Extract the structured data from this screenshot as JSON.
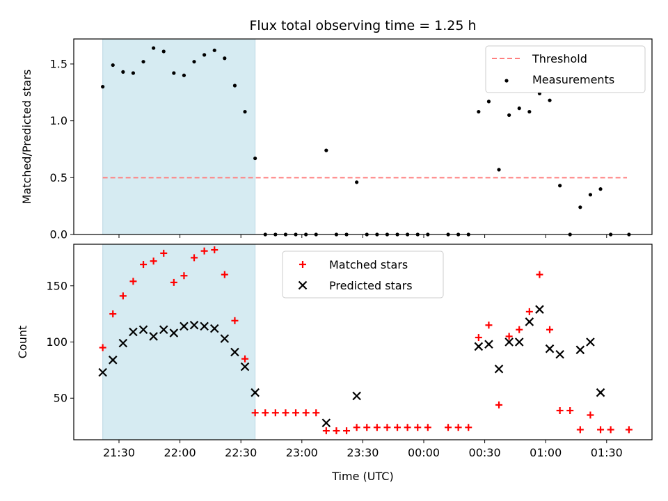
{
  "title": "Flux total observing time = 1.25 h",
  "colors": {
    "threshold": "#ff7f7f",
    "measurement": "#000000",
    "matched": "#ff0000",
    "predicted": "#000000",
    "span": "#add8e6"
  },
  "chart_data": [
    {
      "type": "scatter",
      "ylabel": "Matched/Predicted stars",
      "xlabel": "",
      "ylim": [
        0,
        1.72
      ],
      "yticks": [
        0.0,
        0.5,
        1.0,
        1.5
      ],
      "ytick_labels": [
        "0.0",
        "0.5",
        "1.0",
        "1.5"
      ],
      "highlight_span": [
        "21:22",
        "22:37"
      ],
      "legend_position": "upper right",
      "threshold": {
        "name": "Threshold",
        "y": 0.5,
        "x_range": [
          "21:22",
          "01:40"
        ]
      },
      "series": [
        {
          "name": "Measurements",
          "x": [
            "21:22",
            "21:27",
            "21:32",
            "21:37",
            "21:42",
            "21:47",
            "21:52",
            "21:57",
            "22:02",
            "22:07",
            "22:12",
            "22:17",
            "22:22",
            "22:27",
            "22:32",
            "22:37",
            "22:42",
            "22:47",
            "22:52",
            "22:57",
            "23:02",
            "23:07",
            "23:12",
            "23:17",
            "23:22",
            "23:27",
            "23:32",
            "23:37",
            "23:42",
            "23:47",
            "23:52",
            "23:57",
            "00:02",
            "00:12",
            "00:17",
            "00:22",
            "00:27",
            "00:32",
            "00:37",
            "00:42",
            "00:47",
            "00:52",
            "00:57",
            "01:02",
            "01:07",
            "01:12",
            "01:17",
            "01:22",
            "01:27",
            "01:32",
            "01:41"
          ],
          "y": [
            1.3,
            1.49,
            1.43,
            1.42,
            1.52,
            1.64,
            1.61,
            1.42,
            1.4,
            1.52,
            1.58,
            1.62,
            1.55,
            1.31,
            1.08,
            0.67,
            0.0,
            0.0,
            0.0,
            0.0,
            0.0,
            0.0,
            0.74,
            0.0,
            0.0,
            0.46,
            0.0,
            0.0,
            0.0,
            0.0,
            0.0,
            0.0,
            0.0,
            0.0,
            0.0,
            0.0,
            1.08,
            1.17,
            0.57,
            1.05,
            1.11,
            1.08,
            1.24,
            1.18,
            0.43,
            0.0,
            0.24,
            0.35,
            0.4,
            0.0,
            0.0
          ]
        }
      ]
    },
    {
      "type": "scatter",
      "xlabel": "Time (UTC)",
      "ylabel": "Count",
      "ylim": [
        13,
        187
      ],
      "yticks": [
        50,
        100,
        150
      ],
      "ytick_labels": [
        "50",
        "100",
        "150"
      ],
      "xticks": [
        "21:30",
        "22:00",
        "22:30",
        "23:00",
        "23:30",
        "00:00",
        "00:30",
        "01:00",
        "01:30"
      ],
      "highlight_span": [
        "21:22",
        "22:37"
      ],
      "legend_position": "upper center",
      "series": [
        {
          "name": "Matched stars",
          "marker": "+",
          "x": [
            "21:22",
            "21:27",
            "21:32",
            "21:37",
            "21:42",
            "21:47",
            "21:52",
            "21:57",
            "22:02",
            "22:07",
            "22:12",
            "22:17",
            "22:22",
            "22:27",
            "22:32",
            "22:37",
            "22:42",
            "22:47",
            "22:52",
            "22:57",
            "23:02",
            "23:07",
            "23:12",
            "23:17",
            "23:22",
            "23:27",
            "23:32",
            "23:37",
            "23:42",
            "23:47",
            "23:52",
            "23:57",
            "00:02",
            "00:12",
            "00:17",
            "00:22",
            "00:27",
            "00:32",
            "00:37",
            "00:42",
            "00:47",
            "00:52",
            "00:57",
            "01:02",
            "01:07",
            "01:12",
            "01:17",
            "01:22",
            "01:27",
            "01:32",
            "01:41"
          ],
          "y": [
            95,
            125,
            141,
            154,
            169,
            172,
            179,
            153,
            159,
            175,
            181,
            182,
            160,
            119,
            85,
            37,
            37,
            37,
            37,
            37,
            37,
            37,
            21,
            21,
            21,
            24,
            24,
            24,
            24,
            24,
            24,
            24,
            24,
            24,
            24,
            24,
            104,
            115,
            44,
            105,
            111,
            127,
            160,
            111,
            39,
            39,
            22,
            35,
            22,
            22,
            22
          ]
        },
        {
          "name": "Predicted stars",
          "marker": "x",
          "x": [
            "21:22",
            "21:27",
            "21:32",
            "21:37",
            "21:42",
            "21:47",
            "21:52",
            "21:57",
            "22:02",
            "22:07",
            "22:12",
            "22:17",
            "22:22",
            "22:27",
            "22:32",
            "22:37",
            "23:12",
            "23:27",
            "00:27",
            "00:32",
            "00:37",
            "00:42",
            "00:47",
            "00:52",
            "00:57",
            "01:02",
            "01:07",
            "01:17",
            "01:22",
            "01:27"
          ],
          "y": [
            73,
            84,
            99,
            109,
            111,
            105,
            111,
            108,
            114,
            115,
            114,
            112,
            103,
            91,
            78,
            55,
            28,
            52,
            96,
            98,
            76,
            100,
            100,
            118,
            129,
            94,
            89,
            93,
            100,
            55
          ]
        }
      ]
    }
  ]
}
